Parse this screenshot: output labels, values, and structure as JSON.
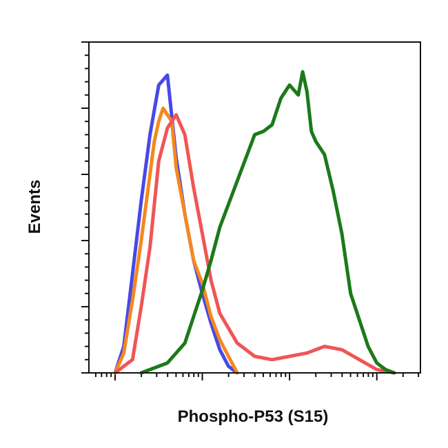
{
  "chart_data": {
    "type": "line",
    "title": "",
    "xlabel": "Phospho-P53 (S15)",
    "ylabel": "Events",
    "xscale": "log",
    "xlim": [
      -0.3,
      3.5
    ],
    "ylim": [
      0,
      1.0
    ],
    "grid": false,
    "legend": "none",
    "series": [
      {
        "color": "#4848e6",
        "x": [
          0.0,
          0.1,
          0.2,
          0.3,
          0.4,
          0.5,
          0.6,
          0.7,
          0.8,
          0.9,
          1.0,
          1.1,
          1.2,
          1.3,
          1.4
        ],
        "y": [
          0.0,
          0.08,
          0.3,
          0.52,
          0.72,
          0.87,
          0.9,
          0.65,
          0.48,
          0.34,
          0.24,
          0.15,
          0.07,
          0.02,
          0.0
        ]
      },
      {
        "color": "#f5881f",
        "x": [
          0.0,
          0.1,
          0.2,
          0.3,
          0.4,
          0.45,
          0.5,
          0.55,
          0.6,
          0.65,
          0.7,
          0.8,
          0.9,
          1.0,
          1.1,
          1.2,
          1.3,
          1.4
        ],
        "y": [
          0.0,
          0.06,
          0.22,
          0.4,
          0.6,
          0.7,
          0.76,
          0.8,
          0.78,
          0.76,
          0.62,
          0.48,
          0.34,
          0.27,
          0.17,
          0.1,
          0.05,
          0.0
        ]
      },
      {
        "color": "#f05555",
        "x": [
          0.0,
          0.2,
          0.3,
          0.4,
          0.5,
          0.6,
          0.7,
          0.8,
          0.9,
          1.0,
          1.1,
          1.2,
          1.4,
          1.6,
          1.8,
          2.0,
          2.2,
          2.4,
          2.6,
          2.8,
          3.0,
          3.2
        ],
        "y": [
          0.0,
          0.04,
          0.2,
          0.38,
          0.64,
          0.74,
          0.78,
          0.72,
          0.56,
          0.42,
          0.28,
          0.18,
          0.09,
          0.05,
          0.04,
          0.05,
          0.06,
          0.08,
          0.07,
          0.04,
          0.01,
          0.0
        ]
      },
      {
        "color": "#1a7a1a",
        "x": [
          0.3,
          0.6,
          0.8,
          1.0,
          1.1,
          1.2,
          1.4,
          1.6,
          1.7,
          1.8,
          1.9,
          2.0,
          2.1,
          2.15,
          2.2,
          2.25,
          2.3,
          2.4,
          2.5,
          2.6,
          2.7,
          2.8,
          2.9,
          3.0,
          3.1,
          3.2
        ],
        "y": [
          0.0,
          0.03,
          0.09,
          0.25,
          0.34,
          0.44,
          0.58,
          0.72,
          0.73,
          0.75,
          0.83,
          0.87,
          0.84,
          0.91,
          0.85,
          0.73,
          0.7,
          0.66,
          0.55,
          0.42,
          0.24,
          0.16,
          0.08,
          0.03,
          0.01,
          0.0
        ]
      }
    ]
  }
}
